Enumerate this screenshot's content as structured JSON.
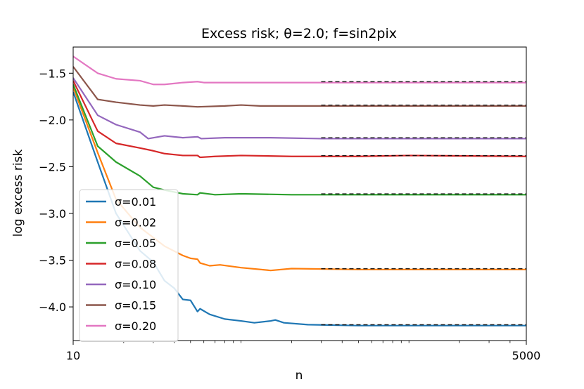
{
  "chart_data": {
    "type": "line",
    "title": "Excess risk; θ=2.0;  f=sin2pix",
    "xlabel": "n",
    "ylabel": "log excess risk",
    "xscale": "log",
    "xlim": [
      10,
      5000
    ],
    "ylim": [
      -4.36,
      -1.22
    ],
    "xtick_values": [
      10,
      5000
    ],
    "xtick_labels": [
      "10",
      "5000"
    ],
    "ytick_values": [
      -4.0,
      -3.5,
      -3.0,
      -2.5,
      -2.0,
      -1.5
    ],
    "ytick_labels": [
      "−4.0",
      "−3.5",
      "−3.0",
      "−2.5",
      "−2.0",
      "−1.5"
    ],
    "legend": {
      "placement": "lower-left"
    },
    "reference_lines": {
      "style": "dashed",
      "color": "#000000",
      "x_start": 300,
      "x_end": 5000
    },
    "series": [
      {
        "name": "σ=0.01",
        "color": "#1f77b4",
        "asymptote": -4.2,
        "points": [
          [
            10,
            -1.7
          ],
          [
            14,
            -2.45
          ],
          [
            18,
            -3.0
          ],
          [
            25,
            -3.4
          ],
          [
            30,
            -3.52
          ],
          [
            35,
            -3.72
          ],
          [
            40,
            -3.8
          ],
          [
            45,
            -3.92
          ],
          [
            50,
            -3.93
          ],
          [
            55,
            -4.05
          ],
          [
            57,
            -4.02
          ],
          [
            65,
            -4.08
          ],
          [
            80,
            -4.13
          ],
          [
            100,
            -4.15
          ],
          [
            120,
            -4.17
          ],
          [
            150,
            -4.15
          ],
          [
            160,
            -4.14
          ],
          [
            180,
            -4.17
          ],
          [
            250,
            -4.19
          ],
          [
            500,
            -4.2
          ],
          [
            1000,
            -4.2
          ],
          [
            5000,
            -4.2
          ]
        ]
      },
      {
        "name": "σ=0.02",
        "color": "#ff7f0e",
        "asymptote": -3.6,
        "points": [
          [
            10,
            -1.65
          ],
          [
            14,
            -2.35
          ],
          [
            18,
            -2.85
          ],
          [
            25,
            -3.15
          ],
          [
            35,
            -3.35
          ],
          [
            45,
            -3.45
          ],
          [
            50,
            -3.48
          ],
          [
            55,
            -3.49
          ],
          [
            57,
            -3.53
          ],
          [
            65,
            -3.56
          ],
          [
            75,
            -3.55
          ],
          [
            100,
            -3.58
          ],
          [
            150,
            -3.61
          ],
          [
            200,
            -3.59
          ],
          [
            500,
            -3.6
          ],
          [
            1000,
            -3.6
          ],
          [
            5000,
            -3.6
          ]
        ]
      },
      {
        "name": "σ=0.05",
        "color": "#2ca02c",
        "asymptote": -2.8,
        "points": [
          [
            10,
            -1.62
          ],
          [
            14,
            -2.28
          ],
          [
            18,
            -2.45
          ],
          [
            25,
            -2.6
          ],
          [
            30,
            -2.72
          ],
          [
            35,
            -2.75
          ],
          [
            45,
            -2.79
          ],
          [
            55,
            -2.8
          ],
          [
            57,
            -2.78
          ],
          [
            70,
            -2.8
          ],
          [
            100,
            -2.79
          ],
          [
            200,
            -2.8
          ],
          [
            500,
            -2.8
          ],
          [
            1000,
            -2.8
          ],
          [
            5000,
            -2.8
          ]
        ]
      },
      {
        "name": "σ=0.08",
        "color": "#d62728",
        "asymptote": -2.39,
        "points": [
          [
            10,
            -1.58
          ],
          [
            14,
            -2.12
          ],
          [
            18,
            -2.25
          ],
          [
            25,
            -2.3
          ],
          [
            30,
            -2.33
          ],
          [
            35,
            -2.36
          ],
          [
            45,
            -2.38
          ],
          [
            55,
            -2.38
          ],
          [
            57,
            -2.4
          ],
          [
            70,
            -2.39
          ],
          [
            100,
            -2.38
          ],
          [
            200,
            -2.39
          ],
          [
            500,
            -2.39
          ],
          [
            1000,
            -2.38
          ],
          [
            5000,
            -2.39
          ]
        ]
      },
      {
        "name": "σ=0.10",
        "color": "#9467bd",
        "asymptote": -2.2,
        "points": [
          [
            10,
            -1.55
          ],
          [
            14,
            -1.95
          ],
          [
            18,
            -2.05
          ],
          [
            25,
            -2.13
          ],
          [
            28,
            -2.2
          ],
          [
            35,
            -2.17
          ],
          [
            45,
            -2.19
          ],
          [
            55,
            -2.18
          ],
          [
            58,
            -2.2
          ],
          [
            80,
            -2.19
          ],
          [
            150,
            -2.19
          ],
          [
            300,
            -2.2
          ],
          [
            1000,
            -2.2
          ],
          [
            5000,
            -2.2
          ]
        ]
      },
      {
        "name": "σ=0.15",
        "color": "#8c564b",
        "asymptote": -1.85,
        "points": [
          [
            10,
            -1.43
          ],
          [
            14,
            -1.78
          ],
          [
            18,
            -1.81
          ],
          [
            25,
            -1.84
          ],
          [
            30,
            -1.85
          ],
          [
            35,
            -1.84
          ],
          [
            45,
            -1.85
          ],
          [
            55,
            -1.86
          ],
          [
            80,
            -1.85
          ],
          [
            100,
            -1.84
          ],
          [
            130,
            -1.85
          ],
          [
            300,
            -1.85
          ],
          [
            1000,
            -1.85
          ],
          [
            5000,
            -1.85
          ]
        ]
      },
      {
        "name": "σ=0.20",
        "color": "#e377c2",
        "asymptote": -1.6,
        "points": [
          [
            10,
            -1.32
          ],
          [
            14,
            -1.5
          ],
          [
            18,
            -1.56
          ],
          [
            25,
            -1.58
          ],
          [
            30,
            -1.62
          ],
          [
            35,
            -1.62
          ],
          [
            45,
            -1.6
          ],
          [
            55,
            -1.59
          ],
          [
            60,
            -1.6
          ],
          [
            100,
            -1.6
          ],
          [
            200,
            -1.6
          ],
          [
            500,
            -1.6
          ],
          [
            1000,
            -1.6
          ],
          [
            5000,
            -1.6
          ]
        ]
      }
    ]
  }
}
